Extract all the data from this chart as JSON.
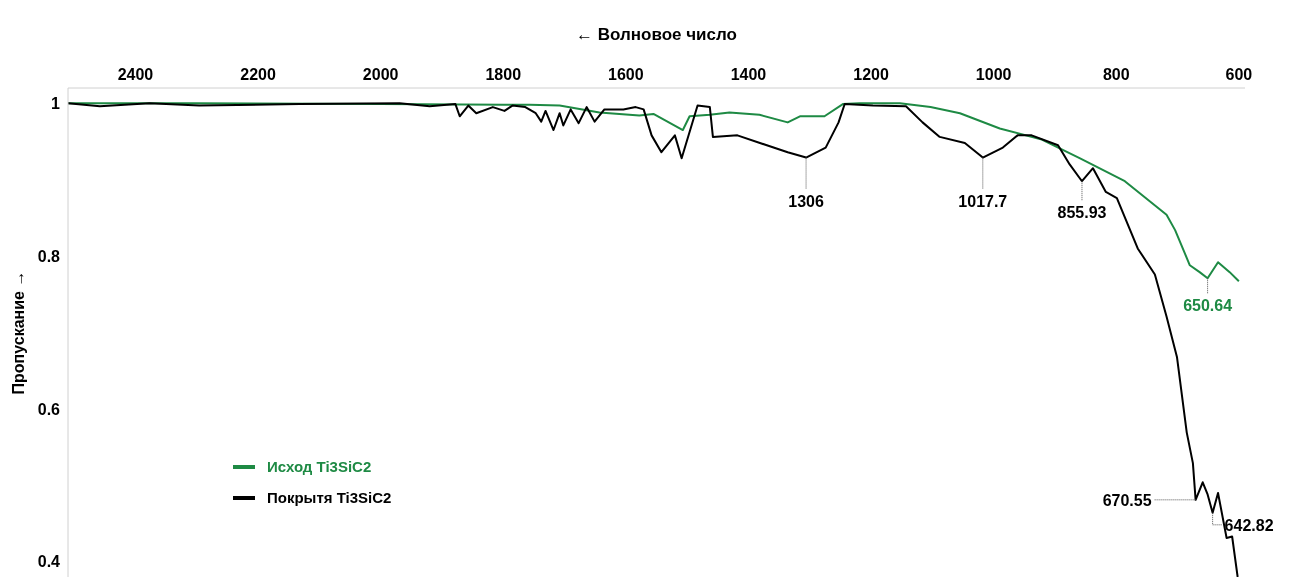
{
  "chart_data": {
    "type": "line",
    "xlabel": "← Волновое число",
    "ylabel": "Пропускание →",
    "xlim": [
      2510,
      590
    ],
    "xticks": [
      2400,
      2200,
      2000,
      1800,
      1600,
      1400,
      1200,
      1000,
      800,
      600
    ],
    "ylim": [
      0.38,
      1.02
    ],
    "yticks": [
      0.4,
      0.6,
      0.8,
      1
    ],
    "grid": false,
    "marker": "none",
    "line_style": "solid",
    "legend": "bottom left",
    "series": [
      {
        "name": "Исход Ti3SiC2",
        "color": "#1e8a44",
        "x": [
          2510,
          2300,
          2000,
          1800,
          1757,
          1708,
          1643,
          1578,
          1555,
          1507,
          1496,
          1463,
          1431,
          1382,
          1336,
          1316,
          1276,
          1246,
          1219,
          1153,
          1103,
          1055,
          990,
          923,
          859,
          786,
          718,
          704,
          680,
          664,
          651,
          634,
          615,
          600
        ],
        "values": [
          1.0,
          1.0,
          0.999,
          0.998,
          0.998,
          0.997,
          0.988,
          0.984,
          0.986,
          0.965,
          0.983,
          0.985,
          0.988,
          0.985,
          0.975,
          0.983,
          0.983,
          0.999,
          1.0,
          1.0,
          0.995,
          0.987,
          0.967,
          0.953,
          0.928,
          0.898,
          0.854,
          0.834,
          0.788,
          0.779,
          0.771,
          0.792,
          0.779,
          0.767
        ]
      },
      {
        "name": "Покрытя Ti3SiC2",
        "color": "#000000",
        "x": [
          2510,
          2458,
          2377,
          2296,
          2132,
          1969,
          1920,
          1878,
          1871,
          1857,
          1844,
          1817,
          1798,
          1785,
          1764,
          1747,
          1738,
          1731,
          1718,
          1708,
          1702,
          1690,
          1677,
          1664,
          1651,
          1635,
          1604,
          1584,
          1571,
          1558,
          1542,
          1520,
          1509,
          1483,
          1463,
          1458,
          1418,
          1370,
          1336,
          1306,
          1274,
          1253,
          1243,
          1197,
          1143,
          1116,
          1088,
          1047,
          1017.7,
          985,
          961,
          938,
          895,
          876,
          855.93,
          838,
          817,
          799,
          765,
          737,
          718,
          701,
          685,
          675,
          670.55,
          659,
          651,
          642.82,
          634,
          620,
          611,
          602
        ],
        "values": [
          1.0,
          0.996,
          1.0,
          0.997,
          0.999,
          1.0,
          0.996,
          0.999,
          0.983,
          0.997,
          0.987,
          0.995,
          0.99,
          0.997,
          0.995,
          0.987,
          0.976,
          0.99,
          0.965,
          0.987,
          0.971,
          0.992,
          0.974,
          0.995,
          0.976,
          0.992,
          0.992,
          0.995,
          0.992,
          0.958,
          0.936,
          0.958,
          0.928,
          0.997,
          0.995,
          0.956,
          0.958,
          0.945,
          0.936,
          0.929,
          0.942,
          0.975,
          0.999,
          0.997,
          0.996,
          0.975,
          0.956,
          0.948,
          0.929,
          0.942,
          0.958,
          0.958,
          0.945,
          0.92,
          0.898,
          0.915,
          0.884,
          0.876,
          0.81,
          0.776,
          0.721,
          0.668,
          0.569,
          0.529,
          0.481,
          0.504,
          0.488,
          0.464,
          0.49,
          0.431,
          0.433,
          0.38
        ]
      }
    ],
    "annotations": [
      {
        "text": "1306",
        "x": 1306,
        "y": 0.929
      },
      {
        "text": "1017.7",
        "x": 1017.7,
        "y": 0.929
      },
      {
        "text": "855.93",
        "x": 855.93,
        "y": 0.898
      },
      {
        "text": "650.64",
        "x": 651,
        "y": 0.771
      },
      {
        "text": "670.55",
        "x": 670.55,
        "y": 0.481
      },
      {
        "text": "642.82",
        "x": 642.82,
        "y": 0.464
      }
    ]
  }
}
